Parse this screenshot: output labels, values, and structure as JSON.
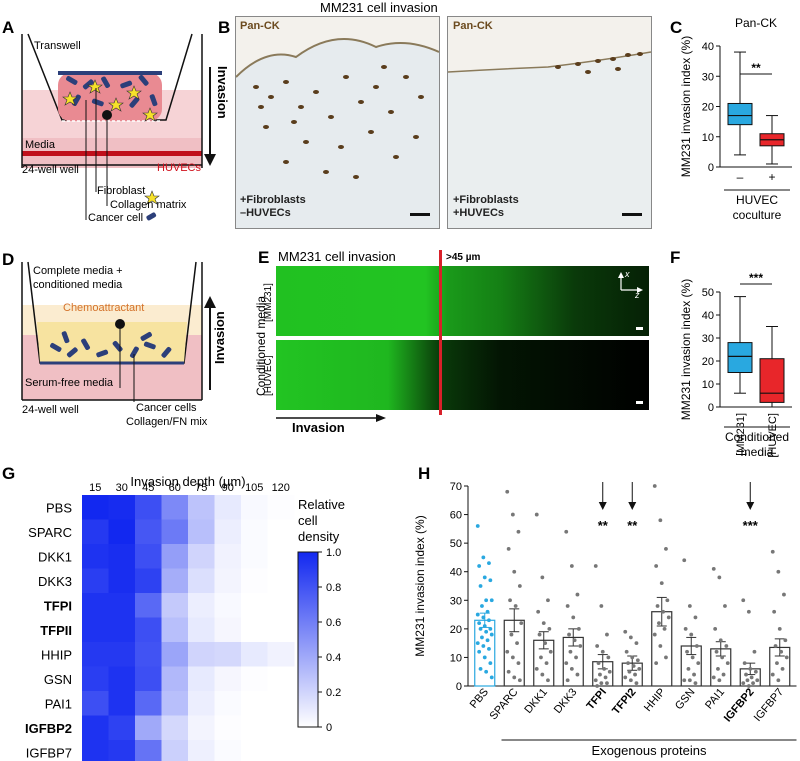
{
  "figure_title": "MM231 cell invasion",
  "panels": {
    "a": {
      "letter": "A",
      "transwell": "Transwell",
      "invasion": "Invasion",
      "media": "Media",
      "huvecs": "HUVECs",
      "well": "24-well well",
      "fibroblast": "Fibroblast",
      "collagen": "Collagen matrix",
      "cancer": "Cancer cell"
    },
    "b": {
      "letter": "B",
      "left_stain": "Pan-CK",
      "left_cond1": "+Fibroblasts",
      "left_cond2": "–HUVECs",
      "right_stain": "Pan-CK",
      "right_cond1": "+Fibroblasts",
      "right_cond2": "+HUVECs"
    },
    "c": {
      "letter": "C"
    },
    "d": {
      "letter": "D",
      "complete1": "Complete media +",
      "complete2": "conditioned media",
      "chemo": "Chemoattractant",
      "invasion": "Invasion",
      "serumfree": "Serum-free media",
      "well": "24-well well",
      "cancer": "Cancer cells",
      "collagen": "Collagen/FN mix"
    },
    "e": {
      "letter": "E",
      "title": "MM231 cell invasion",
      "threshold": ">45 µm",
      "side_label": "Conditioned media",
      "row1": "[MM231]",
      "row2": "[HUVEC]",
      "invasion": "Invasion",
      "axis_x": "x",
      "axis_z": "z"
    },
    "f": {
      "letter": "F"
    },
    "g": {
      "letter": "G"
    },
    "h": {
      "letter": "H"
    }
  },
  "chart_data": [
    {
      "id": "C",
      "type": "box",
      "title": "Pan-CK",
      "ylabel": "MM231 invasion index (%)",
      "xlabel": "HUVEC coculture",
      "ylim": [
        0,
        40
      ],
      "yticks": [
        0,
        10,
        20,
        30,
        40
      ],
      "categories": [
        "–",
        "+"
      ],
      "series": [
        {
          "min": 4,
          "q1": 14,
          "median": 17,
          "q3": 21,
          "max": 38,
          "color": "#29a8e0"
        },
        {
          "min": 1,
          "q1": 7,
          "median": 9,
          "q3": 11,
          "max": 17,
          "color": "#e8262a"
        }
      ],
      "significance": "**"
    },
    {
      "id": "F",
      "type": "box",
      "ylabel": "MM231 invasion index (%)",
      "xlabel": "Conditioned media",
      "ylim": [
        0,
        50
      ],
      "yticks": [
        0,
        10,
        20,
        30,
        40,
        50
      ],
      "categories": [
        "[MM231]",
        "[HUVEC]"
      ],
      "series": [
        {
          "min": 6,
          "q1": 15,
          "median": 22,
          "q3": 28,
          "max": 48,
          "color": "#29a8e0"
        },
        {
          "min": 0,
          "q1": 2,
          "median": 6,
          "q3": 21,
          "max": 35,
          "color": "#e8262a"
        }
      ],
      "significance": "***"
    },
    {
      "id": "G",
      "type": "heatmap",
      "title": "Invasion depth (µm)",
      "x": [
        15,
        30,
        45,
        60,
        75,
        90,
        105,
        120
      ],
      "y": [
        "PBS",
        "SPARC",
        "DKK1",
        "DKK3",
        "TFPI",
        "TFPII",
        "HHIP",
        "GSN",
        "PAI1",
        "IGFBP2",
        "IGFBP7"
      ],
      "bold_rows": [
        "TFPI",
        "TFPII",
        "IGFBP2"
      ],
      "colorbar_label": [
        "Relative",
        "cell",
        "density"
      ],
      "colorbar_ticks": [
        "0",
        "0.2",
        "0.4",
        "0.6",
        "0.8",
        "1.0"
      ],
      "values": [
        [
          1.0,
          0.98,
          0.82,
          0.55,
          0.28,
          0.1,
          0.03,
          0.01
        ],
        [
          0.92,
          1.0,
          0.78,
          0.62,
          0.3,
          0.08,
          0.02,
          0.0
        ],
        [
          0.95,
          0.97,
          0.82,
          0.45,
          0.2,
          0.06,
          0.02,
          0.0
        ],
        [
          0.9,
          0.97,
          0.88,
          0.38,
          0.15,
          0.05,
          0.01,
          0.0
        ],
        [
          0.95,
          0.95,
          0.7,
          0.25,
          0.08,
          0.03,
          0.0,
          0.0
        ],
        [
          0.95,
          0.95,
          0.82,
          0.3,
          0.1,
          0.04,
          0.0,
          0.0
        ],
        [
          0.92,
          0.92,
          0.8,
          0.42,
          0.2,
          0.18,
          0.1,
          0.06
        ],
        [
          0.9,
          0.95,
          0.82,
          0.33,
          0.1,
          0.04,
          0.01,
          0.0
        ],
        [
          0.82,
          0.95,
          0.7,
          0.3,
          0.08,
          0.02,
          0.0,
          0.0
        ],
        [
          0.95,
          0.88,
          0.4,
          0.18,
          0.05,
          0.01,
          0.0,
          0.0
        ],
        [
          0.95,
          0.92,
          0.65,
          0.22,
          0.07,
          0.02,
          0.0,
          0.0
        ]
      ]
    },
    {
      "id": "H",
      "type": "bar",
      "ylabel": "MM231 invasion index (%)",
      "xlabel": "Exogenous proteins",
      "ylim": [
        0,
        70
      ],
      "yticks": [
        0,
        10,
        20,
        30,
        40,
        50,
        60,
        70
      ],
      "categories": [
        "PBS",
        "SPARC",
        "DKK1",
        "DKK3",
        "TFPI",
        "TFPI2",
        "HHIP",
        "GSN",
        "PAI1",
        "IGFBP2",
        "IGFBP7"
      ],
      "bold_categories": [
        "TFPI",
        "TFPI2",
        "IGFBP2"
      ],
      "values": [
        23,
        23,
        16,
        17,
        8.5,
        8,
        26,
        14,
        13,
        6,
        13.5
      ],
      "errors": [
        2.5,
        4,
        3,
        3,
        2.5,
        2.5,
        5,
        3,
        2.5,
        2,
        3
      ],
      "significance": {
        "TFPI": "**",
        "TFPI2": "**",
        "IGFBP2": "***"
      },
      "points": [
        [
          56,
          45,
          43,
          42,
          38,
          37,
          35,
          30,
          30,
          28,
          26,
          25,
          24,
          23,
          22,
          21,
          20,
          20,
          19,
          18,
          17,
          16,
          15,
          14,
          13,
          12,
          10,
          8,
          6,
          5,
          3
        ],
        [
          68,
          60,
          54,
          48,
          40,
          35,
          30,
          28,
          22,
          18,
          15,
          12,
          10,
          8,
          5,
          3,
          2
        ],
        [
          60,
          38,
          30,
          26,
          22,
          20,
          18,
          15,
          12,
          10,
          8,
          6,
          4,
          2
        ],
        [
          54,
          42,
          32,
          28,
          24,
          20,
          18,
          16,
          14,
          12,
          10,
          8,
          6,
          4,
          2
        ],
        [
          42,
          28,
          18,
          14,
          12,
          10,
          8,
          6,
          5,
          4,
          3,
          2,
          1,
          1,
          0
        ],
        [
          19,
          17,
          15,
          12,
          10,
          9,
          8,
          7,
          6,
          5,
          4,
          3,
          2,
          1
        ],
        [
          70,
          58,
          48,
          42,
          36,
          30,
          28,
          26,
          24,
          22,
          20,
          18,
          14,
          10,
          8
        ],
        [
          44,
          28,
          24,
          20,
          18,
          14,
          12,
          10,
          8,
          6,
          4,
          2,
          2,
          1
        ],
        [
          41,
          38,
          28,
          20,
          16,
          14,
          12,
          10,
          8,
          6,
          4,
          3,
          2
        ],
        [
          30,
          26,
          12,
          8,
          6,
          5,
          4,
          3,
          2,
          2,
          1,
          1,
          0
        ],
        [
          47,
          40,
          32,
          26,
          20,
          16,
          14,
          12,
          10,
          8,
          6,
          4,
          2
        ]
      ]
    }
  ]
}
